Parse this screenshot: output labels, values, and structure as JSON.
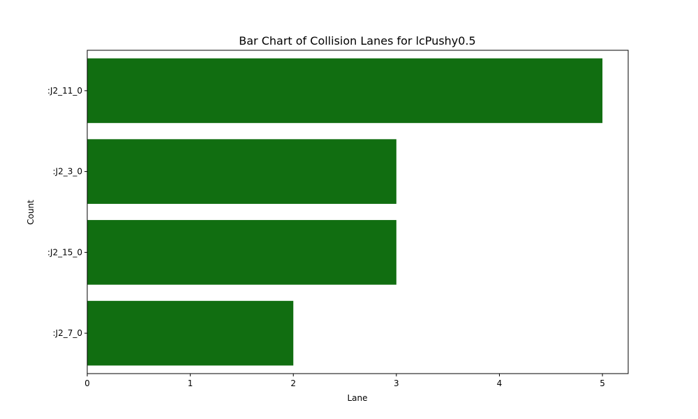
{
  "chart_data": {
    "type": "bar",
    "orientation": "horizontal",
    "title": "Bar Chart of Collision Lanes for lcPushy0.5",
    "xlabel": "Lane",
    "ylabel": "Count",
    "categories": [
      ":J2_11_0",
      ":J2_3_0",
      ":J2_15_0",
      ":J2_7_0"
    ],
    "values": [
      5,
      3,
      3,
      2
    ],
    "xlim": [
      0,
      5.25
    ],
    "xticks": [
      0,
      1,
      2,
      3,
      4,
      5
    ],
    "grid": false,
    "bar_color": "#116e11"
  }
}
